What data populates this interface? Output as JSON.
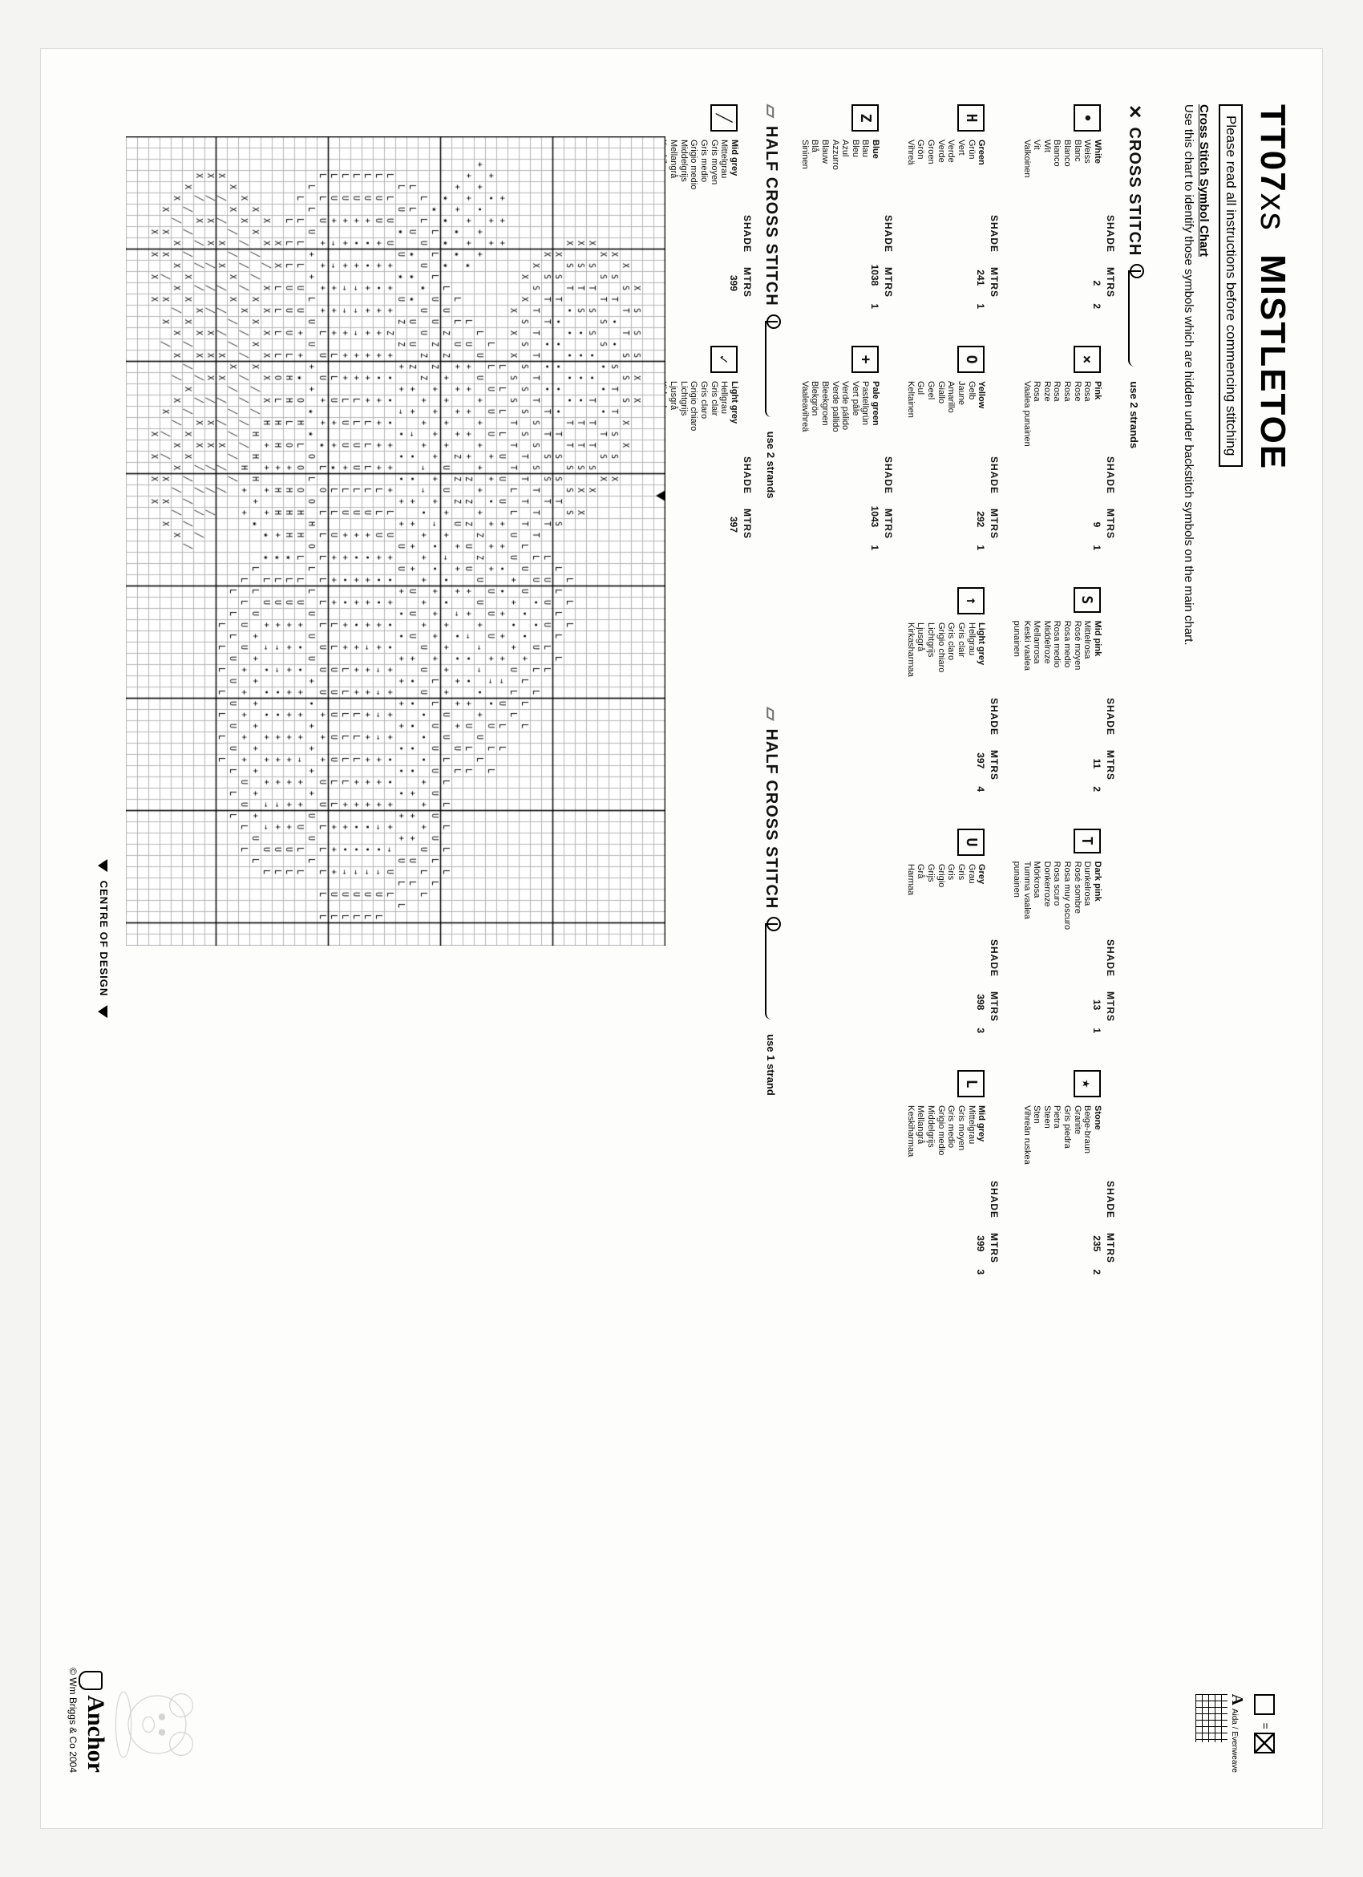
{
  "title_code": "TT07",
  "title_suffix": "xs",
  "title_name": "MISTLETOE",
  "instruction": "Please read all instructions before commencing stitching",
  "symbol_chart_hd": "Cross Stitch Symbol Chart",
  "symbol_chart_txt": "Use this chart to identify those symbols which are hidden under backstitch symbols on the main chart.",
  "aida_label": "Aida / Evenweave",
  "aida_equals": "=",
  "section_cross": "CROSS STITCH",
  "section_half": "HALF CROSS STITCH",
  "strands2": "use 2 strands",
  "strands1": "use 1 strand",
  "hdr_shade": "SHADE",
  "hdr_mtrs": "MTRS",
  "centre_label": "CENTRE OF DESIGN",
  "brand": "Anchor",
  "copyright": "© Wm Briggs & Co 2004",
  "cross_row1": [
    {
      "sym": "•",
      "name": "White",
      "langs": [
        "White",
        "Weiss",
        "Blanc",
        "Blanco",
        "Bianco",
        "Wit",
        "Vit",
        "Valkoinen"
      ],
      "shade": "2",
      "mtrs": "2"
    },
    {
      "sym": "×",
      "name": "Pink",
      "langs": [
        "Pink",
        "Rosa",
        "Rose",
        "Rosa",
        "Rosa",
        "Roze",
        "Rosa",
        "Vaalea punainen"
      ],
      "shade": "9",
      "mtrs": "1"
    },
    {
      "sym": "S",
      "name": "Mid pink",
      "langs": [
        "Mid pink",
        "Mittelrosa",
        "Rosé moyen",
        "Rosa medio",
        "Rosa medio",
        "Middelroze",
        "Mellanrosa",
        "Keski vaalea punainen"
      ],
      "shade": "11",
      "mtrs": "2"
    },
    {
      "sym": "T",
      "name": "Dark pink",
      "langs": [
        "Dark pink",
        "Dunkelrosa",
        "Rosé sombre",
        "Rosa muy oscuro",
        "Rosa scuro",
        "Donkerroze",
        "Mörkrosa",
        "Tumma vaalea punainen"
      ],
      "shade": "13",
      "mtrs": "1"
    },
    {
      "sym": "★",
      "name": "Stone",
      "langs": [
        "Stone",
        "Beige-braun",
        "Granite",
        "Gris piedra",
        "Pietra",
        "Steen",
        "Sten",
        "Vihreän ruskea"
      ],
      "shade": "235",
      "mtrs": "2"
    }
  ],
  "cross_row2": [
    {
      "sym": "H",
      "name": "Green",
      "langs": [
        "Green",
        "Grün",
        "Vert",
        "Verde",
        "Verde",
        "Groen",
        "Grön",
        "Vihreä"
      ],
      "shade": "241",
      "mtrs": "1"
    },
    {
      "sym": "O",
      "name": "Yellow",
      "langs": [
        "Yellow",
        "Gelb",
        "Jaune",
        "Amarillo",
        "Giallo",
        "Geel",
        "Gul",
        "Keltainen"
      ],
      "shade": "292",
      "mtrs": "1"
    },
    {
      "sym": "↑",
      "name": "Light grey",
      "langs": [
        "Light grey",
        "Hellgrau",
        "Gris clair",
        "Gris claro",
        "Grigio chiaro",
        "Lichtgrijs",
        "Ljusgrå",
        "Kirkasharmaa"
      ],
      "shade": "397",
      "mtrs": "4"
    },
    {
      "sym": "U",
      "name": "Grey",
      "langs": [
        "Grey",
        "Grau",
        "Gris",
        "Gris",
        "Grigio",
        "Grijs",
        "Grå",
        "Harmaa"
      ],
      "shade": "398",
      "mtrs": "3"
    },
    {
      "sym": "L",
      "name": "Mid grey",
      "langs": [
        "Mid grey",
        "Mittelgrau",
        "Gris moyen",
        "Gris medio",
        "Grigio medio",
        "Middelgrijs",
        "Mellangrå",
        "Keskiharmaa"
      ],
      "shade": "399",
      "mtrs": "3"
    }
  ],
  "cross_row3": [
    {
      "sym": "Z",
      "name": "Blue",
      "langs": [
        "Blue",
        "Blau",
        "Bleu",
        "Azul",
        "Azzurro",
        "Blauw",
        "Blå",
        "Sininen"
      ],
      "shade": "1038",
      "mtrs": "1"
    },
    {
      "sym": "+",
      "name": "Pale green",
      "langs": [
        "Pale green",
        "Pastellgrün",
        "Vert pâle",
        "Verde pálido",
        "Verde pallido",
        "Bleekgroen",
        "Blekgrön",
        "Vaaleavihreä"
      ],
      "shade": "1043",
      "mtrs": "1"
    }
  ],
  "half_row": [
    {
      "sym": "╱",
      "name": "Mid grey",
      "langs": [
        "Mid grey",
        "Mittelgrau",
        "Gris moyen",
        "Gris medio",
        "Grigio medio",
        "Middelgrijs",
        "Mellangrå",
        "Keskiharmaa"
      ],
      "shade": "399",
      "mtrs": ""
    },
    {
      "sym": "✓",
      "name": "Light grey",
      "langs": [
        "Light grey",
        "Hellgrau",
        "Gris clair",
        "Gris claro",
        "Grigio chiaro",
        "Lichtgrijs",
        "Ljusgrå",
        "Kirkasharmaa"
      ],
      "shade": "397",
      "mtrs": ""
    }
  ],
  "chart": {
    "cols": 72,
    "rows": 48,
    "cell": 14,
    "major": 10,
    "grid_color": "#b4b4b4",
    "major_color": "#000000",
    "font": "10px monospace",
    "centre_col": 32,
    "centre_row": 24
  },
  "chart_data": [
    "                                                                        ",
    "                                                                        ",
    "             X S S S X X                                                ",
    "           X S T T S S S X X                                            ",
    "          X S T • • S T T S S X                                         ",
    "          X S T S S • • • T S X                                         ",
    "         X S T S S • • T T T S X                                        ",
    "         X S T S • • • • T T S X X                                      ",
    "         X S T • • • • • T T S S S     L L L                            ",
    "          X S T • • • • • T S S T S   L L L L L                         ",
    "          X S T T • • • T T S S T T  L U U U L L                        ",
    "           X S T T T T T S S S T T T L U • • U L L                      ",
    "            X X S S S S S S T T T T L U U • • + L L L                   ",
    "               X X X S S T T T L L U U + + • + U L L                    ",
    "     + + +          L L L L U U U + + • • + + + → U L L                 ",
    "   + • + +        L L U U U + + • + + + U U U + → • U L L               ",
    "  + + • + +      L U U + + + + + + Z Z U U + → → • + U L                ",
    "   + + + + ★    L U + + + + + Z Z Z U U + + → • • + U L L               ",
    "    + + ★ ★   L L U + + + + Z Z Z U + + + → • • + + + U L               ",
    "     ★ ★ ★ ★ L U Z Z + + + + U U + + → • • + + + + U U L L L L L L      ",
    "      ★ L L L U U Z Z + + + + + + → • • + + + + L L U U U U U U L L     ",
    "     L L U U ★ U U Z Z + + + → → • + + + + + U U U • • • + + + U L L    ",
    "    L L U ★ ★ ★ U U Z + + → • • + + + + U U U + • • • • • + + + U L     ",
    "    L U ★ U ★ U Z Z + + → • • • + + U U + • • + + + + • • • + + U L L   ",
    "   L L U U + + + Z + • • • + + + L U + • + • • + + + + • • + + → U L    ",
    "   L U U + + • + + + • + + + + L L U + • • + + → → → → + + + → • → U L  ",
    "   L U + • • + + + + + + L L L L U + • + + + → + + + + + + + • • → U L  ",
    "   L U + • + → → → + + L L U U L U + • + + • + + + L L L + + • • → U L  ",
    "   L U + + + → → + + + L U U + L U + + • • + + L L L L L L + + • → U L  ",
    "   L U + → → + + + L L U + + ★ L L U + + + L L U U U U U L L + + + U L  ",
    "   L L U + + + + L U U + + ★ L O L L L L L L U U U + + + U U L L L L L  ",
    "    L L U + + L U U + + ★ ★ O L O H O L L U U U + • + + + + U U L       ",
    "     L L L L U U + + ★ O H L O O H H L L U + • • + + + → + + U L L      ",
    "       L L L U U U L H H L O + H H H ★ L U + + + + + + + + + + U L      ",
    "         X X L L L L O L H H + H H + ★ L U + → → • • + + + → + U L      ",
    "       X X ╱ X X X X X X H + + + + ★ ★ L U + → • • • + + + → → U L      ",
    "      X X ╱ ╱ X X X X ╱ ╱ H H H + ★   L L U + + + + + + + + + U L       ",
    "     X X ╱ ╱ ╱ X ╱ ╱ ╱ ╱ ╱ ╱ H + +     L L U U + + + + + U U L L        ",
    "    X X ╱ ╱ X X ╱ ╱ X ╱ ╱ ╱ ╱ ╱         L L L U U U U U L L L           ",
    "   X ╱ ╱ X X ╱ ╱ ╱ X X ╱ ╱ X ╱ ╱           L L L L L L L                ",
    "   X ╱ X X ╱ ╱ ╱ X X X ╱ X X ╱ ╱ ╱                                      ",
    "   X ╱ X ╱ ╱ ╱ X X X ╱ ╱ X X ╱ ╱ ╱ ╱                                    ",
    "    X ╱ ╱ ╱ X X X ╱ ╱ X ╱ X X ╱ ╱ ╱ ╱                                   ",
    "     X ╱ X X X ╱ X X ╱ X ╱ X X ╱ ╱ X                                    ",
    "      X X X ╱ X X ╱     X ╱ ╱ X X X                                     ",
    "        X X X X           X X X X                                       ",
    "                                                                        ",
    "                                                                        "
  ]
}
